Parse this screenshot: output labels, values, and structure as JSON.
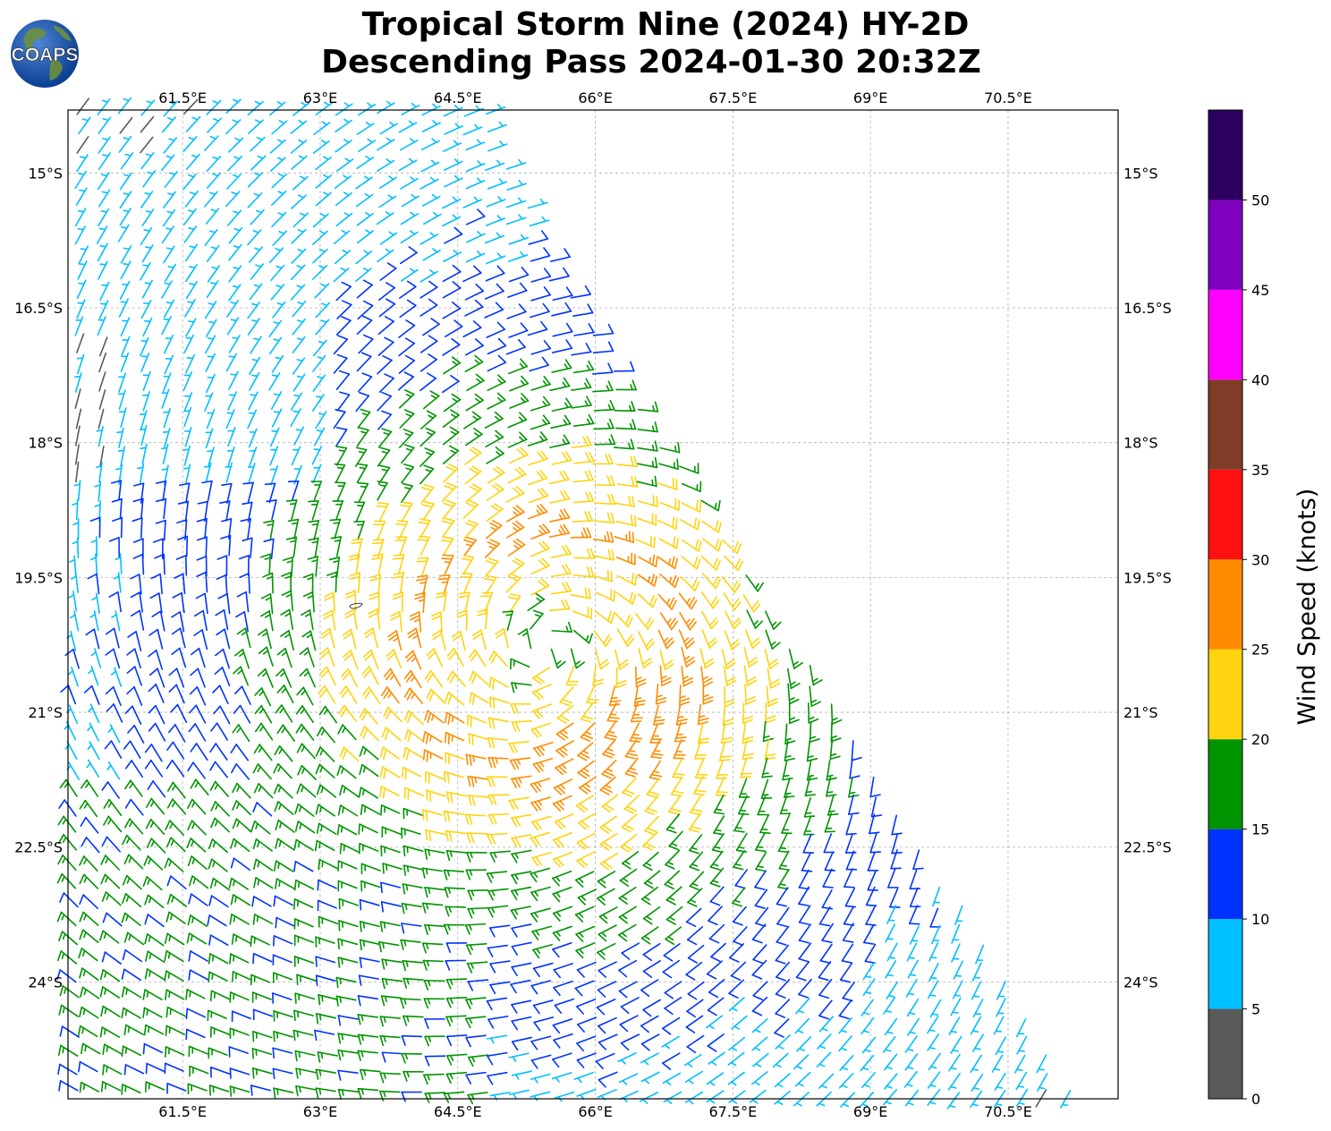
{
  "title": {
    "line1": "Tropical Storm Nine (2024) HY-2D",
    "line2": "Descending Pass 2024-01-30 20:32Z"
  },
  "logo": {
    "text": "COAPS",
    "icon": "globe-icon"
  },
  "map": {
    "lon_ticks": [
      "61.5°E",
      "63°E",
      "64.5°E",
      "66°E",
      "67.5°E",
      "69°E",
      "70.5°E"
    ],
    "lat_ticks": [
      "15°S",
      "16.5°S",
      "18°S",
      "19.5°S",
      "21°S",
      "22.5°S",
      "24°S"
    ],
    "lon_values": [
      61.5,
      63,
      64.5,
      66,
      67.5,
      69,
      70.5
    ],
    "lat_values": [
      -15,
      -16.5,
      -18,
      -19.5,
      -21,
      -22.5,
      -24
    ],
    "lon_range": [
      60.25,
      71.7
    ],
    "lat_range": [
      -25.3,
      -14.3
    ],
    "gridlines": true,
    "storm_center": {
      "lon": 65.45,
      "lat": -20.3
    }
  },
  "colorbar": {
    "label": "Wind Speed (knots)",
    "ticks": [
      "0",
      "5",
      "10",
      "15",
      "20",
      "25",
      "30",
      "35",
      "40",
      "45",
      "50"
    ],
    "colors": [
      "#595959",
      "#00bfff",
      "#0033ff",
      "#009400",
      "#ffd30f",
      "#ff8c00",
      "#ff1010",
      "#803c26",
      "#ff00ff",
      "#8000bf",
      "#2b005e"
    ],
    "bounds": [
      0,
      5,
      10,
      15,
      20,
      25,
      30,
      35,
      40,
      45,
      50,
      55
    ]
  }
}
